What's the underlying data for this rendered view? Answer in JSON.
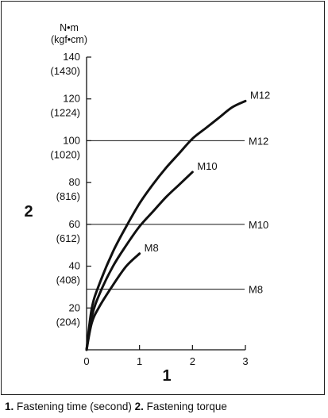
{
  "chart_data": {
    "type": "line",
    "y_unit_top": "N•m",
    "y_unit_bottom": "(kgf•cm)",
    "x_axis_number": "1",
    "y_axis_number": "2",
    "xlim": [
      0,
      3
    ],
    "ylim": [
      0,
      140
    ],
    "x_ticks": [
      "0",
      "1",
      "2",
      "3"
    ],
    "y_ticks": [
      {
        "value": 20,
        "label": "20",
        "sub": "(204)"
      },
      {
        "value": 40,
        "label": "40",
        "sub": "(408)"
      },
      {
        "value": 60,
        "label": "60",
        "sub": "(612)"
      },
      {
        "value": 80,
        "label": "80",
        "sub": "(816)"
      },
      {
        "value": 100,
        "label": "100",
        "sub": "(1020)"
      },
      {
        "value": 120,
        "label": "120",
        "sub": "(1224)"
      },
      {
        "value": 140,
        "label": "140",
        "sub": "(1430)"
      }
    ],
    "curves": [
      {
        "name": "M12",
        "x": [
          0,
          0.1,
          0.25,
          0.5,
          0.75,
          1.0,
          1.25,
          1.5,
          1.75,
          2.0,
          2.25,
          2.5,
          2.75,
          3.0
        ],
        "y": [
          0,
          20,
          32,
          47,
          59,
          70,
          79,
          87,
          94,
          101,
          106,
          111,
          116,
          119
        ]
      },
      {
        "name": "M10",
        "x": [
          0,
          0.1,
          0.25,
          0.5,
          0.75,
          1.0,
          1.25,
          1.5,
          1.75,
          2.0
        ],
        "y": [
          0,
          16,
          27,
          40,
          50,
          59,
          66,
          73,
          79,
          85
        ]
      },
      {
        "name": "M8",
        "x": [
          0,
          0.1,
          0.25,
          0.5,
          0.75,
          1.0
        ],
        "y": [
          0,
          13,
          21,
          31,
          40,
          46
        ]
      }
    ],
    "reference_lines": [
      {
        "name": "M12",
        "y": 100
      },
      {
        "name": "M10",
        "y": 60
      },
      {
        "name": "M8",
        "y": 29
      }
    ]
  },
  "caption": {
    "n1": "1.",
    "t1": " Fastening time (second) ",
    "n2": "2.",
    "t2": " Fastening torque"
  }
}
